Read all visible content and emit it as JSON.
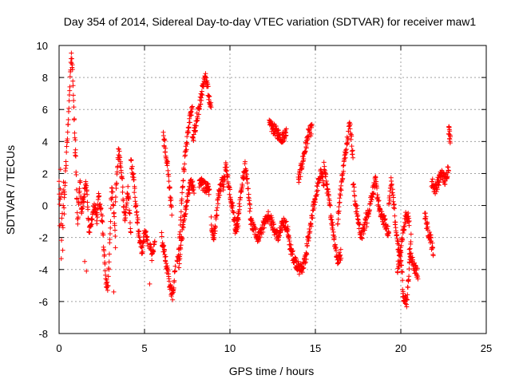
{
  "chart_data": {
    "type": "scatter",
    "title": "Day 354 of 2014, Sidereal Day-to-day VTEC variation (SDTVAR) for receiver maw1",
    "xlabel": "GPS time / hours",
    "ylabel": "SDTVAR / TECUs",
    "xlim": [
      0,
      25
    ],
    "ylim": [
      -8,
      10
    ],
    "xticks": [
      0,
      5,
      10,
      15,
      20,
      25
    ],
    "yticks": [
      -8,
      -6,
      -4,
      -2,
      0,
      2,
      4,
      6,
      8,
      10
    ],
    "xtick_labels": [
      "0",
      "5",
      "10",
      "15",
      "20",
      "25"
    ],
    "ytick_labels": [
      "-8",
      "-6",
      "-4",
      "-2",
      "0",
      "2",
      "4",
      "6",
      "8",
      "10"
    ],
    "grid": true,
    "marker": "+",
    "series_color": "#ff0000",
    "series": [
      {
        "name": "maw1",
        "segments": [
          {
            "x0": 0.0,
            "x1": 0.3,
            "y": [
              1.5,
              -1,
              2.2,
              -3,
              0.5,
              -2.5,
              1.2,
              -0.5
            ]
          },
          {
            "x0": 0.3,
            "x1": 0.95,
            "y": [
              0.5,
              2.0,
              4.0,
              5.5,
              7.2,
              9.4,
              8.6,
              6.0,
              3.0
            ]
          },
          {
            "x0": 0.95,
            "x1": 1.3,
            "y": [
              4.0,
              1.0,
              -1.0,
              0.5,
              1.5,
              -0.5
            ]
          },
          {
            "x0": 1.3,
            "x1": 2.2,
            "y": [
              -0.5,
              0.5,
              1.5,
              -1.5,
              -1.0,
              0.0,
              -0.5
            ]
          },
          {
            "x0": 2.2,
            "x1": 3.3,
            "y": [
              -1.0,
              0.5,
              0.0,
              -1.0,
              -3.0,
              -4.8,
              -5.3,
              -2.0,
              1.2,
              0.0,
              -2.5
            ]
          },
          {
            "x0": 3.3,
            "x1": 4.2,
            "y": [
              0.5,
              3.5,
              2.0,
              -1.0,
              1.0,
              -1.5
            ]
          },
          {
            "x0": 4.2,
            "x1": 5.2,
            "y": [
              2.8,
              1.5,
              -0.5,
              -2.0,
              -3.0,
              -1.5,
              -2.5
            ]
          },
          {
            "x0": 5.3,
            "x1": 5.6,
            "y": [
              -2.5,
              -3.2,
              -2.2
            ]
          },
          {
            "x0": 6.0,
            "x1": 6.8,
            "y": [
              -2.0,
              -3.0,
              -4.0,
              -5.0,
              -5.6,
              -4.0
            ]
          },
          {
            "x0": 6.1,
            "x1": 6.6,
            "y": [
              4.3,
              3.5,
              2.5,
              1.0,
              -0.5
            ]
          },
          {
            "x0": 6.9,
            "x1": 7.8,
            "y": [
              -3.5,
              -2.5,
              0.0,
              2.0,
              3.5,
              4.5,
              5.5,
              6.0
            ]
          },
          {
            "x0": 7.0,
            "x1": 7.9,
            "y": [
              -3.8,
              -2.0,
              -0.5,
              0.5,
              1.5,
              1.0
            ]
          },
          {
            "x0": 7.8,
            "x1": 8.9,
            "y": [
              4.0,
              5.0,
              6.0,
              7.0,
              8.2,
              7.2,
              6.0
            ]
          },
          {
            "x0": 8.2,
            "x1": 8.8,
            "y": [
              1.5,
              1.2,
              1.0
            ]
          },
          {
            "x0": 8.9,
            "x1": 9.6,
            "y": [
              -1.0,
              -2.0,
              -1.0,
              0.5,
              1.2,
              1.8
            ]
          },
          {
            "x0": 9.6,
            "x1": 10.5,
            "y": [
              1.0,
              2.5,
              1.5,
              0.5,
              -0.5,
              -1.5,
              -1.0
            ]
          },
          {
            "x0": 10.3,
            "x1": 11.2,
            "y": [
              -1.5,
              -1.0,
              0.5,
              1.5,
              2.5,
              1.0,
              -0.5
            ]
          },
          {
            "x0": 11.2,
            "x1": 12.3,
            "y": [
              -1.0,
              -1.5,
              -2.0,
              -1.5,
              -1.0,
              -0.5
            ]
          },
          {
            "x0": 12.3,
            "x1": 13.3,
            "y": [
              5.0,
              4.8,
              4.5,
              4.2,
              4.6
            ]
          },
          {
            "x0": 12.3,
            "x1": 13.4,
            "y": [
              -0.5,
              -1.5,
              -2.0,
              -1.0,
              -1.5
            ]
          },
          {
            "x0": 13.4,
            "x1": 14.5,
            "y": [
              -2.0,
              -3.0,
              -3.5,
              -4.0,
              -3.8,
              -3.0
            ]
          },
          {
            "x0": 14.0,
            "x1": 14.8,
            "y": [
              1.5,
              2.5,
              3.5,
              4.5,
              4.8
            ]
          },
          {
            "x0": 14.5,
            "x1": 15.5,
            "y": [
              -2.5,
              -1.5,
              0.0,
              1.0,
              2.0,
              1.5
            ]
          },
          {
            "x0": 15.5,
            "x1": 16.5,
            "y": [
              2.5,
              1.0,
              -0.5,
              -2.0,
              -3.5,
              -3.0
            ]
          },
          {
            "x0": 16.3,
            "x1": 17.2,
            "y": [
              -1.0,
              1.0,
              2.5,
              4.0,
              5.2,
              3.0
            ]
          },
          {
            "x0": 17.2,
            "x1": 18.0,
            "y": [
              1.5,
              0.0,
              -1.0,
              -2.0,
              -1.5,
              -0.5
            ]
          },
          {
            "x0": 18.0,
            "x1": 19.3,
            "y": [
              -1.0,
              0.5,
              1.5,
              -0.5,
              -1.0,
              -1.8
            ]
          },
          {
            "x0": 19.3,
            "x1": 20.1,
            "y": [
              0.0,
              1.5,
              0.5,
              -1.5,
              -2.5,
              -3.2,
              -4.5
            ]
          },
          {
            "x0": 19.8,
            "x1": 20.5,
            "y": [
              -4.0,
              -3.0,
              -1.5,
              -0.5,
              -1.0
            ]
          },
          {
            "x0": 20.1,
            "x1": 20.6,
            "y": [
              -5.5,
              -6.2,
              -2.0
            ]
          },
          {
            "x0": 20.5,
            "x1": 21.0,
            "y": [
              -3.0,
              -3.5,
              -4.0,
              -4.3
            ]
          },
          {
            "x0": 21.4,
            "x1": 21.9,
            "y": [
              -0.5,
              -1.5,
              -2.0,
              -3.0
            ]
          },
          {
            "x0": 21.8,
            "x1": 22.8,
            "y": [
              1.5,
              1.0,
              1.5,
              2.0,
              1.5,
              2.5
            ]
          },
          {
            "x0": 22.8,
            "x1": 22.9,
            "y": [
              4.8,
              4.2
            ]
          }
        ]
      }
    ]
  }
}
